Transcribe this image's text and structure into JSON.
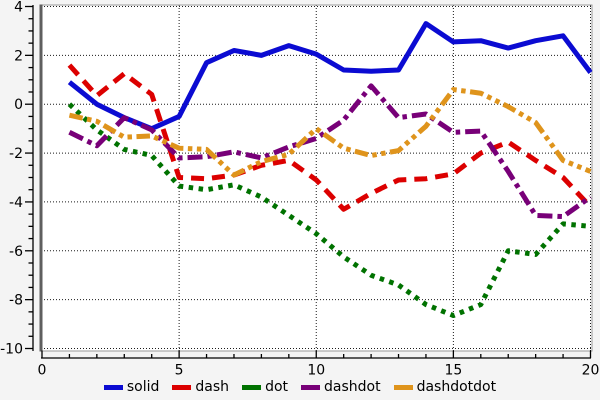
{
  "figure": {
    "bg": "#f4f4f4",
    "plot_bg": "#ffffff",
    "border_color": "#9a9a9a",
    "spine_color": "#5f5f5f",
    "grid_color": "#1a1a1a",
    "axis_color": "#000000",
    "tick_font_px": 14
  },
  "chart_data": {
    "type": "line",
    "title": "",
    "xlabel": "",
    "ylabel": "",
    "xlim": [
      0,
      20
    ],
    "ylim": [
      -10,
      4
    ],
    "x_major_ticks": [
      0,
      5,
      10,
      15,
      20
    ],
    "x_minor_step": 1,
    "y_major_ticks": [
      4,
      2,
      0,
      -2,
      -4,
      -6,
      -8,
      -10
    ],
    "y_minor_step": 0.5,
    "grid": "dotted-on-majors",
    "legend_position": "bottom-center",
    "x": [
      1,
      2,
      3,
      4,
      5,
      6,
      7,
      8,
      9,
      10,
      11,
      12,
      13,
      14,
      15,
      16,
      17,
      18,
      19,
      20
    ],
    "series": [
      {
        "name": "solid",
        "color": "#0b0bd2",
        "dash_style": "solid",
        "values": [
          0.9,
          0.0,
          -0.55,
          -1.0,
          -0.5,
          1.7,
          2.2,
          2.0,
          2.4,
          2.05,
          1.4,
          1.35,
          1.4,
          3.3,
          2.55,
          2.6,
          2.3,
          2.6,
          2.8,
          1.3
        ]
      },
      {
        "name": "dash",
        "color": "#dc0000",
        "dash_style": "dash",
        "values": [
          1.6,
          0.35,
          1.25,
          0.4,
          -3.0,
          -3.05,
          -2.9,
          -2.5,
          -2.3,
          -3.1,
          -4.3,
          -3.65,
          -3.1,
          -3.05,
          -2.85,
          -2.0,
          -1.55,
          -2.3,
          -3.0,
          -4.2
        ]
      },
      {
        "name": "dot",
        "color": "#007200",
        "dash_style": "dot",
        "values": [
          0.0,
          -1.05,
          -1.85,
          -2.1,
          -3.35,
          -3.5,
          -3.3,
          -3.8,
          -4.55,
          -5.3,
          -6.25,
          -7.0,
          -7.4,
          -8.2,
          -8.65,
          -8.2,
          -6.0,
          -6.15,
          -4.9,
          -5.0
        ]
      },
      {
        "name": "dashdot",
        "color": "#780078",
        "dash_style": "dashdot",
        "values": [
          -1.15,
          -1.7,
          -0.55,
          -1.05,
          -2.2,
          -2.15,
          -1.95,
          -2.2,
          -1.75,
          -1.4,
          -0.65,
          0.75,
          -0.55,
          -0.4,
          -1.15,
          -1.1,
          -2.75,
          -4.55,
          -4.6,
          -3.8
        ]
      },
      {
        "name": "dashdotdot",
        "color": "#df941c",
        "dash_style": "dashdotdot",
        "values": [
          -0.45,
          -0.7,
          -1.35,
          -1.3,
          -1.8,
          -1.85,
          -2.9,
          -2.35,
          -2.05,
          -1.0,
          -1.8,
          -2.1,
          -1.9,
          -0.9,
          0.6,
          0.45,
          -0.1,
          -0.75,
          -2.3,
          -2.75
        ]
      }
    ]
  }
}
